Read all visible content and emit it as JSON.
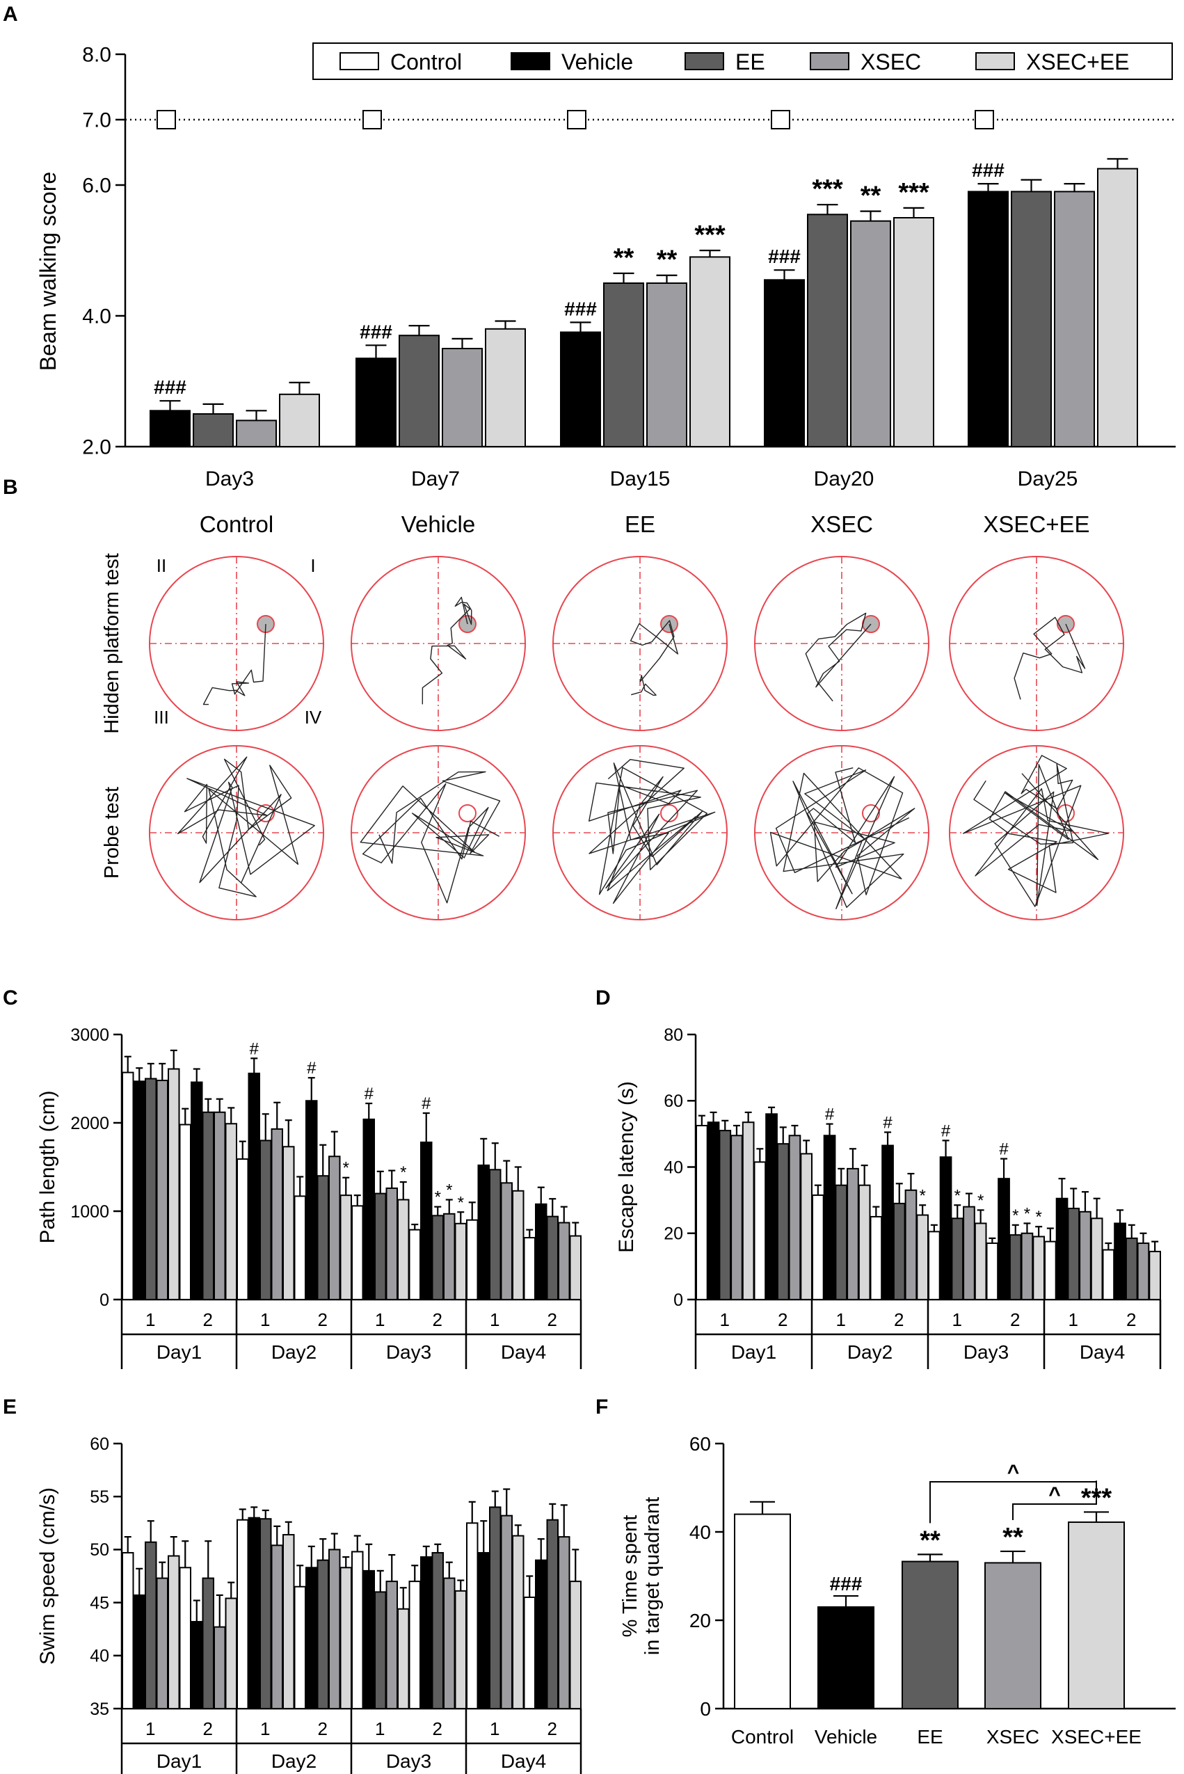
{
  "panel_labels": {
    "a": "A",
    "b": "B",
    "c": "C",
    "d": "D",
    "e": "E",
    "f": "F"
  },
  "colors": {
    "Control": "#ffffff",
    "Vehicle": "#000000",
    "EE": "#5e5e5e",
    "XSEC": "#9d9da1",
    "XSEC+EE": "#d8d8d8",
    "maze": "#e8464f"
  },
  "chart_data": [
    {
      "id": "A",
      "type": "bar",
      "ylabel": "Beam walking score",
      "ylim": [
        2.0,
        8.0
      ],
      "yticks": [
        "2.0",
        "4.0",
        "6.0",
        "7.0",
        "8.0"
      ],
      "ytick_values": [
        2,
        4,
        6,
        7,
        8
      ],
      "categories": [
        "Day3",
        "Day7",
        "Day15",
        "Day20",
        "Day25"
      ],
      "legend": [
        "Control",
        "Vehicle",
        "EE",
        "XSEC",
        "XSEC+EE"
      ],
      "reference_line": 7.0,
      "series": [
        {
          "name": "Control",
          "values": [
            7.0,
            7.0,
            7.0,
            7.0,
            7.0
          ],
          "marker": "square"
        },
        {
          "name": "Vehicle",
          "values": [
            2.55,
            3.35,
            3.75,
            4.55,
            5.9
          ],
          "errors": [
            0.15,
            0.2,
            0.15,
            0.15,
            0.12
          ]
        },
        {
          "name": "EE",
          "values": [
            2.5,
            3.7,
            4.5,
            5.55,
            5.9
          ],
          "errors": [
            0.15,
            0.15,
            0.15,
            0.15,
            0.18
          ]
        },
        {
          "name": "XSEC",
          "values": [
            2.4,
            3.5,
            4.5,
            5.45,
            5.9
          ],
          "errors": [
            0.15,
            0.15,
            0.12,
            0.15,
            0.12
          ]
        },
        {
          "name": "XSEC+EE",
          "values": [
            2.8,
            3.8,
            4.9,
            5.5,
            6.25
          ],
          "errors": [
            0.18,
            0.12,
            0.1,
            0.15,
            0.15
          ]
        }
      ],
      "annotations": [
        {
          "text": "###",
          "category": 0,
          "series": "Vehicle"
        },
        {
          "text": "###",
          "category": 1,
          "series": "Vehicle"
        },
        {
          "text": "###",
          "category": 2,
          "series": "Vehicle"
        },
        {
          "text": "**",
          "category": 2,
          "series": "EE"
        },
        {
          "text": "**",
          "category": 2,
          "series": "XSEC"
        },
        {
          "text": "***",
          "category": 2,
          "series": "XSEC+EE"
        },
        {
          "text": "###",
          "category": 3,
          "series": "Vehicle"
        },
        {
          "text": "***",
          "category": 3,
          "series": "EE"
        },
        {
          "text": "**",
          "category": 3,
          "series": "XSEC"
        },
        {
          "text": "***",
          "category": 3,
          "series": "XSEC+EE"
        },
        {
          "text": "###",
          "category": 4,
          "series": "Vehicle"
        }
      ]
    },
    {
      "id": "C",
      "type": "bar",
      "ylabel": "Path length (cm)",
      "ylim": [
        0,
        3000
      ],
      "yticks": [
        "0",
        "1000",
        "2000",
        "3000"
      ],
      "ytick_values": [
        0,
        1000,
        2000,
        3000
      ],
      "days": [
        "Day1",
        "Day2",
        "Day3",
        "Day4"
      ],
      "trials": [
        "1",
        "2"
      ],
      "series": [
        {
          "name": "Control",
          "values": [
            2570,
            1980,
            1590,
            1170,
            1060,
            790,
            900,
            700
          ],
          "errors": [
            180,
            180,
            200,
            220,
            120,
            60,
            200,
            90
          ]
        },
        {
          "name": "Vehicle",
          "values": [
            2470,
            2460,
            2560,
            2250,
            2040,
            1780,
            1520,
            1080
          ],
          "errors": [
            150,
            150,
            170,
            260,
            180,
            330,
            300,
            190
          ]
        },
        {
          "name": "EE",
          "values": [
            2500,
            2120,
            1800,
            1400,
            1200,
            950,
            1470,
            940
          ],
          "errors": [
            170,
            150,
            300,
            350,
            250,
            100,
            300,
            200
          ]
        },
        {
          "name": "XSEC",
          "values": [
            2480,
            2120,
            1930,
            1620,
            1260,
            970,
            1320,
            870
          ],
          "errors": [
            190,
            150,
            300,
            280,
            200,
            160,
            250,
            180
          ]
        },
        {
          "name": "XSEC+EE",
          "values": [
            2610,
            1990,
            1730,
            1180,
            1130,
            860,
            1230,
            720
          ],
          "errors": [
            210,
            180,
            300,
            200,
            200,
            130,
            270,
            150
          ]
        }
      ],
      "annotations": [
        {
          "text": "#",
          "group": 2,
          "series": "Vehicle"
        },
        {
          "text": "#",
          "group": 3,
          "series": "Vehicle"
        },
        {
          "text": "*",
          "group": 3,
          "series": "XSEC+EE"
        },
        {
          "text": "#",
          "group": 4,
          "series": "Vehicle"
        },
        {
          "text": "*",
          "group": 4,
          "series": "XSEC+EE"
        },
        {
          "text": "#",
          "group": 5,
          "series": "Vehicle"
        },
        {
          "text": "*",
          "group": 5,
          "series": "EE"
        },
        {
          "text": "*",
          "group": 5,
          "series": "XSEC"
        },
        {
          "text": "*",
          "group": 5,
          "series": "XSEC+EE"
        }
      ]
    },
    {
      "id": "D",
      "type": "bar",
      "ylabel": "Escape latency (s)",
      "ylim": [
        0,
        80
      ],
      "yticks": [
        "0",
        "20",
        "40",
        "60",
        "80"
      ],
      "ytick_values": [
        0,
        20,
        40,
        60,
        80
      ],
      "days": [
        "Day1",
        "Day2",
        "Day3",
        "Day4"
      ],
      "trials": [
        "1",
        "2"
      ],
      "series": [
        {
          "name": "Control",
          "values": [
            52.5,
            41.5,
            31.5,
            25.0,
            20.5,
            17.0,
            17.5,
            15.0
          ],
          "errors": [
            3,
            4,
            3,
            3,
            2,
            1.5,
            4,
            2
          ]
        },
        {
          "name": "Vehicle",
          "values": [
            53.5,
            56.0,
            49.5,
            46.5,
            43.0,
            36.5,
            30.5,
            23.0
          ],
          "errors": [
            3,
            2,
            3.5,
            4,
            5,
            6,
            6,
            4
          ]
        },
        {
          "name": "EE",
          "values": [
            51.0,
            47.0,
            34.5,
            29.0,
            24.5,
            19.5,
            27.5,
            18.5
          ],
          "errors": [
            3,
            5,
            5,
            6,
            4,
            3,
            6,
            4
          ]
        },
        {
          "name": "XSEC",
          "values": [
            49.5,
            49.5,
            39.5,
            33.0,
            28.0,
            20.0,
            26.5,
            17.0
          ],
          "errors": [
            3,
            3,
            6,
            5,
            4,
            3,
            6,
            3
          ]
        },
        {
          "name": "XSEC+EE",
          "values": [
            53.5,
            44.0,
            34.5,
            25.5,
            23.0,
            19.0,
            24.5,
            14.5
          ],
          "errors": [
            3,
            4,
            6,
            3,
            4,
            3,
            6,
            3
          ]
        }
      ],
      "annotations": [
        {
          "text": "#",
          "group": 2,
          "series": "Vehicle"
        },
        {
          "text": "#",
          "group": 3,
          "series": "Vehicle"
        },
        {
          "text": "*",
          "group": 3,
          "series": "XSEC+EE"
        },
        {
          "text": "#",
          "group": 4,
          "series": "Vehicle"
        },
        {
          "text": "*",
          "group": 4,
          "series": "EE"
        },
        {
          "text": "*",
          "group": 4,
          "series": "XSEC+EE"
        },
        {
          "text": "#",
          "group": 5,
          "series": "Vehicle"
        },
        {
          "text": "*",
          "group": 5,
          "series": "EE"
        },
        {
          "text": "*",
          "group": 5,
          "series": "XSEC"
        },
        {
          "text": "*",
          "group": 5,
          "series": "XSEC+EE"
        }
      ]
    },
    {
      "id": "E",
      "type": "bar",
      "ylabel": "Swim speed (cm/s)",
      "ylim": [
        35,
        60
      ],
      "yticks": [
        "35",
        "40",
        "45",
        "50",
        "55",
        "60"
      ],
      "ytick_values": [
        35,
        40,
        45,
        50,
        55,
        60
      ],
      "days": [
        "Day1",
        "Day2",
        "Day3",
        "Day4"
      ],
      "trials": [
        "1",
        "2"
      ],
      "series": [
        {
          "name": "Control",
          "values": [
            49.7,
            48.3,
            52.8,
            46.5,
            49.8,
            47.0,
            52.5,
            45.5
          ],
          "errors": [
            1.5,
            2.5,
            1,
            2,
            1.5,
            1.5,
            2,
            2
          ]
        },
        {
          "name": "Vehicle",
          "values": [
            45.7,
            43.2,
            53.0,
            48.3,
            48.0,
            49.3,
            49.7,
            49.0
          ],
          "errors": [
            2.5,
            2,
            1,
            2,
            2.5,
            1,
            3,
            2
          ]
        },
        {
          "name": "EE",
          "values": [
            50.7,
            47.3,
            52.9,
            49.0,
            46.0,
            49.7,
            54.0,
            52.8
          ],
          "errors": [
            2,
            3.5,
            0.8,
            2,
            2,
            0.8,
            1.5,
            1.5
          ]
        },
        {
          "name": "XSEC",
          "values": [
            47.3,
            42.7,
            50.4,
            50.0,
            47.0,
            47.3,
            53.2,
            51.2
          ],
          "errors": [
            1.5,
            3,
            1.8,
            1.5,
            2.5,
            1.5,
            2.5,
            3
          ]
        },
        {
          "name": "XSEC+EE",
          "values": [
            49.4,
            45.4,
            51.4,
            48.3,
            44.4,
            46.1,
            51.3,
            47.0
          ],
          "errors": [
            1.8,
            1.5,
            1.2,
            1,
            2,
            1,
            1,
            3
          ]
        }
      ]
    },
    {
      "id": "F",
      "type": "bar",
      "ylabel": [
        "% Time spent",
        "in target quadrant"
      ],
      "ylim": [
        0,
        60
      ],
      "yticks": [
        "0",
        "20",
        "40",
        "60"
      ],
      "ytick_values": [
        0,
        20,
        40,
        60
      ],
      "categories": [
        "Control",
        "Vehicle",
        "EE",
        "XSEC",
        "XSEC+EE"
      ],
      "values": [
        44,
        23,
        33.3,
        33,
        42.2
      ],
      "errors": [
        2.8,
        2.5,
        1.6,
        2.6,
        2.3
      ],
      "annotations": [
        {
          "text": "###",
          "bar": 1
        },
        {
          "text": "**",
          "bar": 2
        },
        {
          "text": "**",
          "bar": 3
        },
        {
          "text": "***",
          "bar": 4
        }
      ],
      "brackets": [
        {
          "from": 2,
          "to": 4,
          "text": "^"
        },
        {
          "from": 3,
          "to": 4,
          "text": "^"
        }
      ]
    }
  ],
  "panel_b": {
    "columns": [
      "Control",
      "Vehicle",
      "EE",
      "XSEC",
      "XSEC+EE"
    ],
    "rows": [
      "Hidden platform test",
      "Probe test"
    ],
    "quadrants": [
      "II",
      "I",
      "III",
      "IV"
    ]
  }
}
